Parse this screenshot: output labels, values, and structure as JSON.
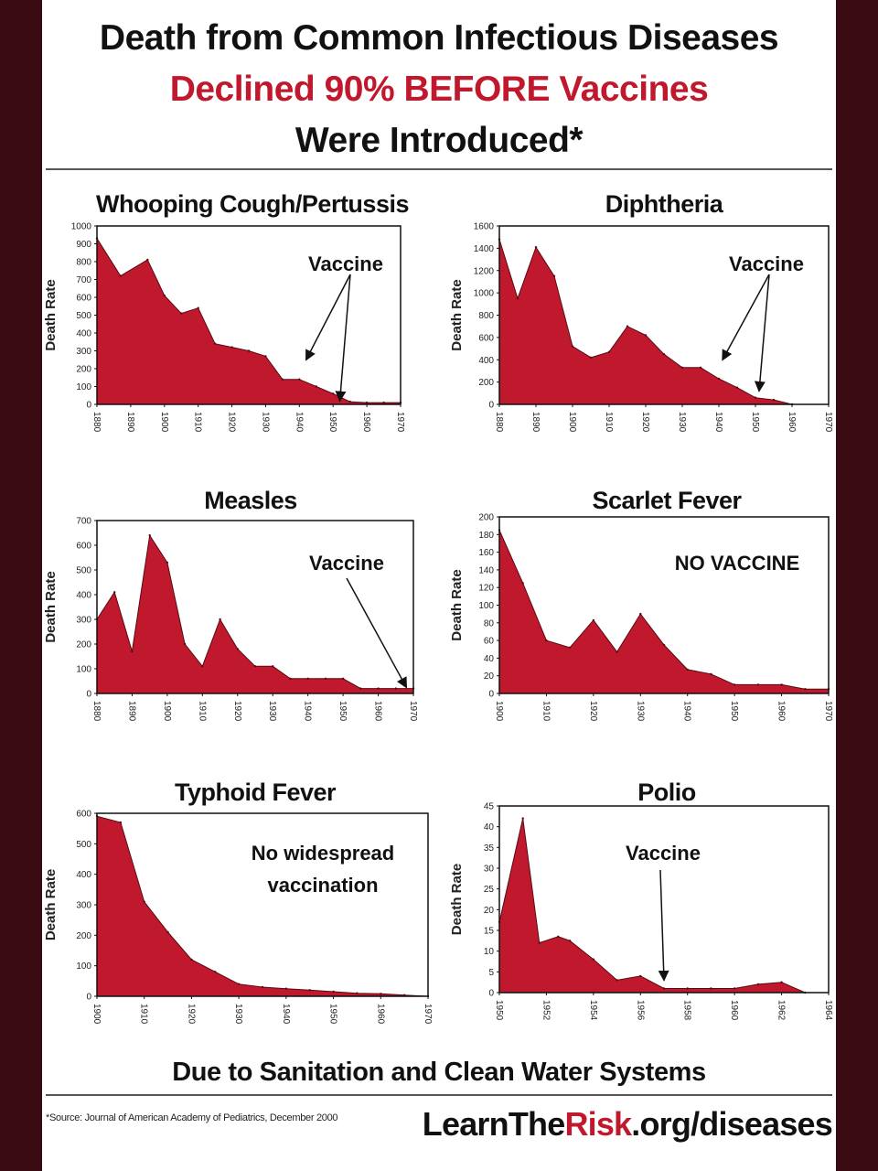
{
  "header": {
    "line1": "Death from Common Infectious Diseases",
    "line2": "Declined 90% BEFORE Vaccines",
    "line3": "Were Introduced*"
  },
  "footer": {
    "note": "Due to Sanitation and Clean Water Systems",
    "source_label": "*Source:",
    "source_text": "Journal of American Academy of Pediatrics, December 2000",
    "brand_pre": "LearnThe",
    "brand_risk": "Risk",
    "brand_post": ".org/diseases"
  },
  "colors": {
    "fill": "#c0182c",
    "accent_text": "#c0182c",
    "background": "#3a0b12"
  },
  "chart_data": [
    {
      "type": "area",
      "title": "Whooping Cough/Pertussis",
      "ylabel": "Death Rate",
      "xlim": [
        1880,
        1970
      ],
      "ylim": [
        0,
        1000
      ],
      "x_ticks": [
        1880,
        1890,
        1900,
        1910,
        1920,
        1930,
        1940,
        1950,
        1960,
        1970
      ],
      "y_ticks": [
        0,
        100,
        200,
        300,
        400,
        500,
        600,
        700,
        800,
        900,
        1000
      ],
      "x": [
        1880,
        1887,
        1895,
        1900,
        1905,
        1910,
        1915,
        1920,
        1925,
        1930,
        1935,
        1940,
        1945,
        1950,
        1955,
        1960,
        1965,
        1970
      ],
      "y": [
        930,
        720,
        810,
        610,
        510,
        540,
        340,
        320,
        300,
        270,
        140,
        140,
        100,
        60,
        15,
        10,
        10,
        10
      ],
      "annotation": "Vaccine",
      "arrow_targets": [
        [
          1942,
          250
        ],
        [
          1952,
          20
        ]
      ]
    },
    {
      "type": "area",
      "title": "Diphtheria",
      "ylabel": "Death Rate",
      "xlim": [
        1880,
        1970
      ],
      "ylim": [
        0,
        1600
      ],
      "x_ticks": [
        1880,
        1890,
        1900,
        1910,
        1920,
        1930,
        1940,
        1950,
        1960,
        1970
      ],
      "y_ticks": [
        0,
        200,
        400,
        600,
        800,
        1000,
        1200,
        1400,
        1600
      ],
      "x": [
        1880,
        1885,
        1890,
        1895,
        1900,
        1905,
        1910,
        1915,
        1920,
        1925,
        1930,
        1935,
        1940,
        1945,
        1950,
        1955,
        1960
      ],
      "y": [
        1480,
        950,
        1410,
        1150,
        520,
        420,
        470,
        700,
        620,
        450,
        330,
        330,
        230,
        150,
        60,
        40,
        0
      ],
      "annotation": "Vaccine",
      "arrow_targets": [
        [
          1941,
          400
        ],
        [
          1951,
          120
        ]
      ]
    },
    {
      "type": "area",
      "title": "Measles",
      "ylabel": "Death Rate",
      "xlim": [
        1880,
        1970
      ],
      "ylim": [
        0,
        700
      ],
      "x_ticks": [
        1880,
        1890,
        1900,
        1910,
        1920,
        1930,
        1940,
        1950,
        1960,
        1970
      ],
      "y_ticks": [
        0,
        100,
        200,
        300,
        400,
        500,
        600,
        700
      ],
      "x": [
        1880,
        1885,
        1890,
        1895,
        1900,
        1905,
        1910,
        1915,
        1920,
        1925,
        1930,
        1935,
        1940,
        1945,
        1950,
        1955,
        1960,
        1965,
        1970
      ],
      "y": [
        300,
        410,
        170,
        640,
        530,
        200,
        110,
        300,
        180,
        110,
        110,
        60,
        60,
        60,
        60,
        20,
        20,
        20,
        20
      ],
      "annotation": "Vaccine",
      "arrow_targets": [
        [
          1968,
          25
        ]
      ]
    },
    {
      "type": "area",
      "title": "Scarlet Fever",
      "ylabel": "Death Rate",
      "xlim": [
        1900,
        1970
      ],
      "ylim": [
        0,
        200
      ],
      "x_ticks": [
        1900,
        1910,
        1920,
        1930,
        1940,
        1950,
        1960,
        1970
      ],
      "y_ticks": [
        0,
        20,
        40,
        60,
        80,
        100,
        120,
        140,
        160,
        180,
        200
      ],
      "x": [
        1900,
        1905,
        1910,
        1915,
        1920,
        1925,
        1930,
        1935,
        1940,
        1945,
        1950,
        1955,
        1960,
        1965,
        1970
      ],
      "y": [
        185,
        125,
        60,
        52,
        83,
        47,
        90,
        55,
        27,
        22,
        10,
        10,
        10,
        5,
        5
      ],
      "annotation": "NO VACCINE"
    },
    {
      "type": "area",
      "title": "Typhoid Fever",
      "ylabel": "Death Rate",
      "xlim": [
        1900,
        1970
      ],
      "ylim": [
        0,
        600
      ],
      "x_ticks": [
        1900,
        1910,
        1920,
        1930,
        1940,
        1950,
        1960,
        1970
      ],
      "y_ticks": [
        0,
        100,
        200,
        300,
        400,
        500,
        600
      ],
      "x": [
        1900,
        1905,
        1910,
        1915,
        1920,
        1925,
        1930,
        1935,
        1940,
        1945,
        1950,
        1955,
        1960,
        1965,
        1970
      ],
      "y": [
        590,
        570,
        310,
        210,
        120,
        80,
        40,
        30,
        25,
        20,
        15,
        10,
        8,
        4,
        0
      ],
      "annotation": "No widespread vaccination"
    },
    {
      "type": "area",
      "title": "Polio",
      "ylabel": "Death Rate",
      "xlim": [
        1950,
        1964
      ],
      "ylim": [
        0,
        45
      ],
      "x_ticks": [
        1950,
        1952,
        1954,
        1956,
        1958,
        1960,
        1962,
        1964
      ],
      "y_ticks": [
        0,
        5,
        10,
        15,
        20,
        25,
        30,
        35,
        40,
        45
      ],
      "x": [
        1950,
        1951,
        1951.7,
        1952.5,
        1953,
        1954,
        1955,
        1956,
        1957,
        1958,
        1959,
        1960,
        1961,
        1962,
        1963
      ],
      "y": [
        17,
        42,
        12,
        13.5,
        12.5,
        8,
        3,
        4,
        1,
        1,
        1,
        1,
        2,
        2.5,
        0
      ],
      "annotation": "Vaccine",
      "arrow_targets": [
        [
          1957,
          3
        ]
      ]
    }
  ]
}
